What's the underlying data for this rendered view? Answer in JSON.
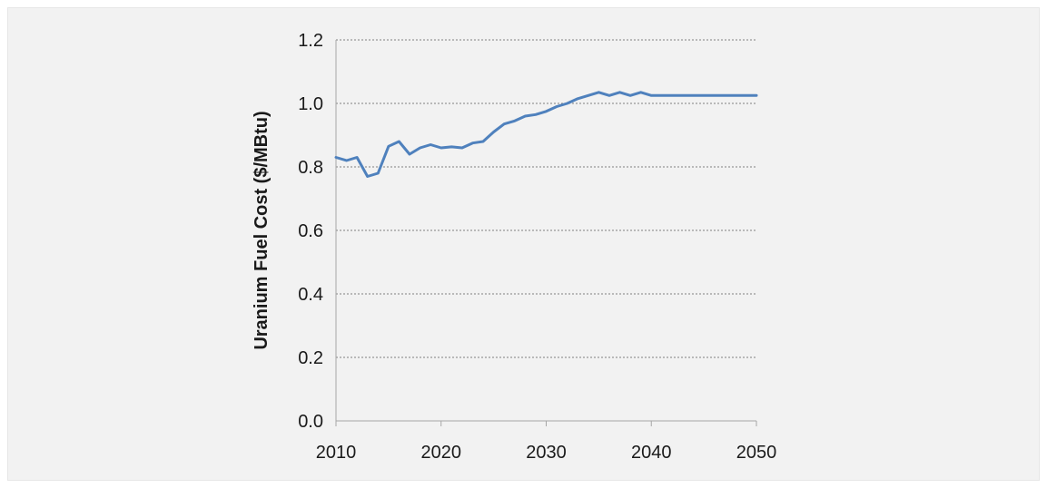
{
  "chart_data": {
    "type": "line",
    "title": "",
    "xlabel": "",
    "ylabel": "Uranium Fuel Cost ($/MBtu)",
    "xlim": [
      2010,
      2050
    ],
    "ylim": [
      0.0,
      1.2
    ],
    "x_ticks": [
      "2010",
      "2020",
      "2030",
      "2040",
      "2050"
    ],
    "y_ticks": [
      "0.0",
      "0.2",
      "0.4",
      "0.6",
      "0.8",
      "1.0",
      "1.2"
    ],
    "grid": "horizontal dotted",
    "legend": "none",
    "colors": {
      "line": "#4f81bd",
      "grid": "#808080",
      "axis": "#a6a6a6",
      "background": "#f2f2f2"
    },
    "series": [
      {
        "x": [
          2010,
          2011,
          2012,
          2013,
          2014,
          2015,
          2016,
          2017,
          2018,
          2019,
          2020,
          2021,
          2022,
          2023,
          2024,
          2025,
          2026,
          2027,
          2028,
          2029,
          2030,
          2031,
          2032,
          2033,
          2034,
          2035,
          2036,
          2037,
          2038,
          2039,
          2040,
          2041,
          2042,
          2043,
          2044,
          2045,
          2046,
          2047,
          2048,
          2049,
          2050
        ],
        "values": [
          0.83,
          0.82,
          0.83,
          0.77,
          0.78,
          0.865,
          0.88,
          0.84,
          0.86,
          0.87,
          0.86,
          0.863,
          0.86,
          0.875,
          0.88,
          0.91,
          0.935,
          0.945,
          0.96,
          0.965,
          0.975,
          0.99,
          1.0,
          1.015,
          1.025,
          1.035,
          1.025,
          1.035,
          1.025,
          1.035,
          1.025,
          1.025,
          1.025,
          1.025,
          1.025,
          1.025,
          1.025,
          1.025,
          1.025,
          1.025,
          1.025
        ]
      }
    ]
  }
}
